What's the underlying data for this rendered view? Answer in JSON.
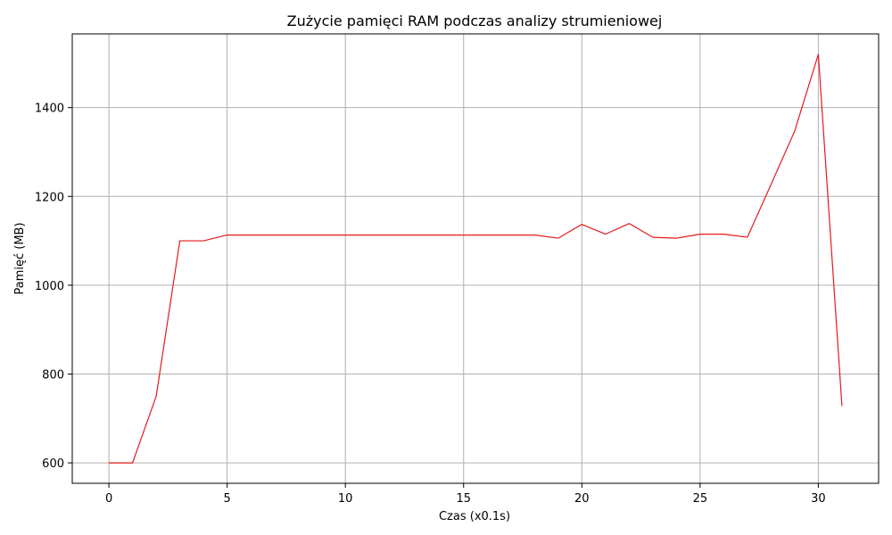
{
  "chart_data": {
    "type": "line",
    "title": "Zużycie pamięci RAM podczas analizy strumieniowej",
    "xlabel": "Czas (x0.1s)",
    "ylabel": "Pamięć (MB)",
    "xlim": [
      -1.55,
      32.55
    ],
    "ylim": [
      554,
      1566
    ],
    "xticks": [
      0,
      5,
      10,
      15,
      20,
      25,
      30
    ],
    "yticks": [
      600,
      800,
      1000,
      1200,
      1400
    ],
    "grid": true,
    "series": [
      {
        "color": "#e41a1c",
        "x": [
          0,
          1,
          2,
          3,
          4,
          5,
          6,
          7,
          8,
          9,
          10,
          11,
          12,
          13,
          14,
          15,
          16,
          17,
          18,
          19,
          20,
          21,
          22,
          23,
          24,
          25,
          26,
          27,
          28,
          29,
          30,
          31
        ],
        "y": [
          600,
          600,
          750,
          1100,
          1100,
          1113,
          1113,
          1113,
          1113,
          1113,
          1113,
          1113,
          1113,
          1113,
          1113,
          1113,
          1113,
          1113,
          1113,
          1106,
          1137,
          1115,
          1139,
          1108,
          1106,
          1115,
          1115,
          1108,
          1227,
          1347,
          1520,
          728
        ]
      }
    ]
  }
}
